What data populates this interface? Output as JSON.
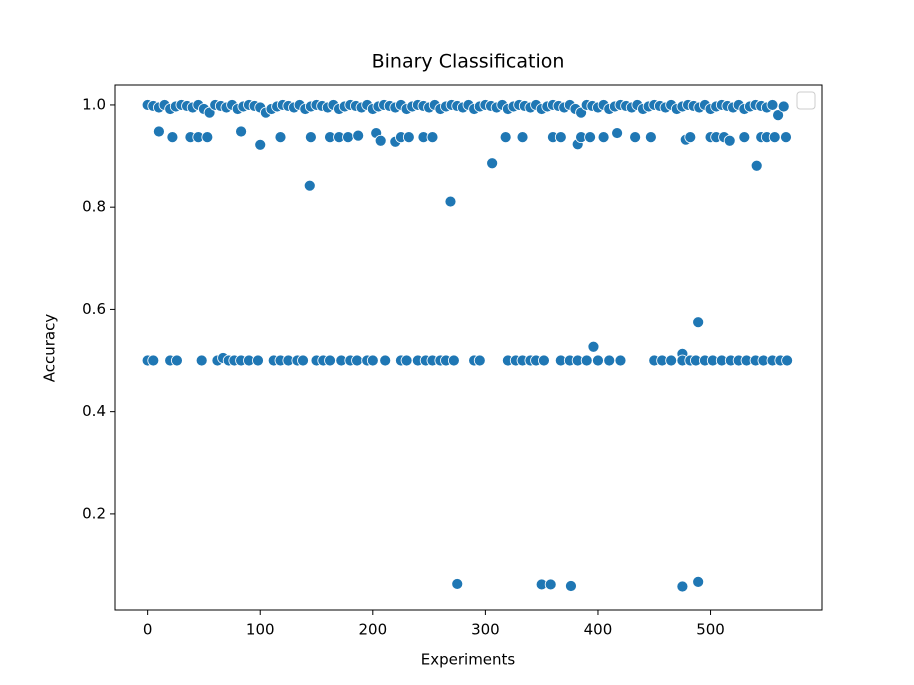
{
  "chart_data": {
    "type": "scatter",
    "title": "Binary Classification",
    "x_label": "Experiments",
    "y_label": "Accuracy",
    "color": "#1f77b4",
    "xlim": [
      -29,
      599
    ],
    "ylim": [
      0.012,
      1.039
    ],
    "xticks": [
      0,
      100,
      200,
      300,
      400,
      500
    ],
    "yticks": [
      0.2,
      0.4,
      0.6,
      0.8,
      {
        "value": 1,
        "label": "1.0"
      }
    ],
    "x": [
      0,
      5,
      10,
      15,
      20,
      25,
      30,
      35,
      40,
      45,
      50,
      55,
      60,
      65,
      70,
      75,
      80,
      85,
      90,
      95,
      100,
      105,
      110,
      115,
      120,
      125,
      130,
      135,
      140,
      145,
      150,
      155,
      160,
      165,
      170,
      175,
      180,
      185,
      190,
      195,
      200,
      205,
      210,
      215,
      220,
      225,
      230,
      235,
      240,
      245,
      250,
      255,
      260,
      265,
      270,
      275,
      280,
      285,
      290,
      295,
      300,
      305,
      310,
      315,
      320,
      325,
      330,
      335,
      340,
      345,
      350,
      355,
      360,
      365,
      370,
      375,
      380,
      385,
      390,
      395,
      400,
      405,
      410,
      415,
      420,
      425,
      430,
      435,
      440,
      445,
      450,
      455,
      460,
      465,
      470,
      475,
      480,
      485,
      490,
      495,
      500,
      505,
      510,
      515,
      520,
      525,
      530,
      535,
      540,
      545,
      550,
      555,
      560,
      565,
      10,
      22,
      38,
      45,
      53,
      83,
      100,
      118,
      145,
      162,
      170,
      178,
      187,
      203,
      207,
      220,
      225,
      232,
      245,
      253,
      318,
      333,
      360,
      367,
      382,
      385,
      393,
      405,
      417,
      433,
      447,
      478,
      482,
      500,
      505,
      512,
      517,
      530,
      545,
      550,
      557,
      567,
      144,
      269,
      306,
      541,
      396,
      489,
      475,
      275,
      350,
      358,
      376,
      475,
      489,
      0,
      5,
      20,
      26,
      48,
      62,
      67,
      72,
      77,
      83,
      90,
      98,
      112,
      118,
      125,
      133,
      138,
      150,
      156,
      162,
      172,
      180,
      186,
      195,
      200,
      211,
      225,
      230,
      240,
      247,
      253,
      260,
      265,
      272,
      290,
      295,
      320,
      327,
      333,
      340,
      345,
      352,
      367,
      375,
      382,
      390,
      400,
      410,
      420,
      450,
      457,
      465,
      475,
      482,
      487,
      495,
      502,
      510,
      518,
      525,
      532,
      540,
      547,
      555,
      562,
      568
    ],
    "values": [
      1,
      0.998,
      0.995,
      1,
      0.992,
      0.997,
      1,
      0.998,
      0.995,
      1,
      0.992,
      0.985,
      1,
      0.998,
      0.995,
      1,
      0.992,
      0.997,
      1,
      0.998,
      0.995,
      0.985,
      0.992,
      0.997,
      1,
      0.998,
      0.995,
      1,
      0.992,
      0.997,
      1,
      0.998,
      0.995,
      1,
      0.992,
      0.997,
      1,
      0.998,
      0.995,
      1,
      0.992,
      0.997,
      1,
      0.998,
      0.995,
      1,
      0.992,
      0.997,
      1,
      0.998,
      0.995,
      1,
      0.992,
      0.997,
      1,
      0.998,
      0.995,
      1,
      0.992,
      0.997,
      1,
      0.998,
      0.995,
      1,
      0.992,
      0.997,
      1,
      0.998,
      0.995,
      1,
      0.992,
      0.997,
      1,
      0.998,
      0.995,
      1,
      0.992,
      0.985,
      1,
      0.998,
      0.995,
      1,
      0.992,
      0.997,
      1,
      0.998,
      0.995,
      1,
      0.992,
      0.997,
      1,
      0.998,
      0.995,
      1,
      0.992,
      0.997,
      1,
      0.998,
      0.995,
      1,
      0.992,
      0.997,
      1,
      0.998,
      0.995,
      1,
      0.992,
      0.997,
      1,
      0.998,
      0.995,
      1,
      0.98,
      0.997,
      0.948,
      0.937,
      0.937,
      0.937,
      0.937,
      0.948,
      0.922,
      0.937,
      0.937,
      0.937,
      0.937,
      0.937,
      0.94,
      0.945,
      0.93,
      0.928,
      0.937,
      0.937,
      0.937,
      0.937,
      0.937,
      0.937,
      0.937,
      0.937,
      0.923,
      0.937,
      0.937,
      0.937,
      0.945,
      0.937,
      0.937,
      0.932,
      0.937,
      0.937,
      0.937,
      0.937,
      0.93,
      0.937,
      0.937,
      0.937,
      0.937,
      0.937,
      0.842,
      0.811,
      0.886,
      0.881,
      0.527,
      0.575,
      0.513,
      0.063,
      0.062,
      0.062,
      0.059,
      0.058,
      0.067,
      0.5,
      0.5,
      0.5,
      0.5,
      0.5,
      0.5,
      0.505,
      0.5,
      0.5,
      0.5,
      0.5,
      0.5,
      0.5,
      0.5,
      0.5,
      0.5,
      0.5,
      0.5,
      0.5,
      0.5,
      0.5,
      0.5,
      0.5,
      0.5,
      0.5,
      0.5,
      0.5,
      0.5,
      0.5,
      0.5,
      0.5,
      0.5,
      0.5,
      0.5,
      0.5,
      0.5,
      0.5,
      0.5,
      0.5,
      0.5,
      0.5,
      0.5,
      0.5,
      0.5,
      0.5,
      0.5,
      0.5,
      0.5,
      0.5,
      0.5,
      0.5,
      0.5,
      0.5,
      0.5,
      0.5,
      0.5,
      0.5,
      0.5,
      0.5,
      0.5,
      0.5,
      0.5,
      0.5,
      0.5,
      0.5,
      0.5
    ]
  }
}
